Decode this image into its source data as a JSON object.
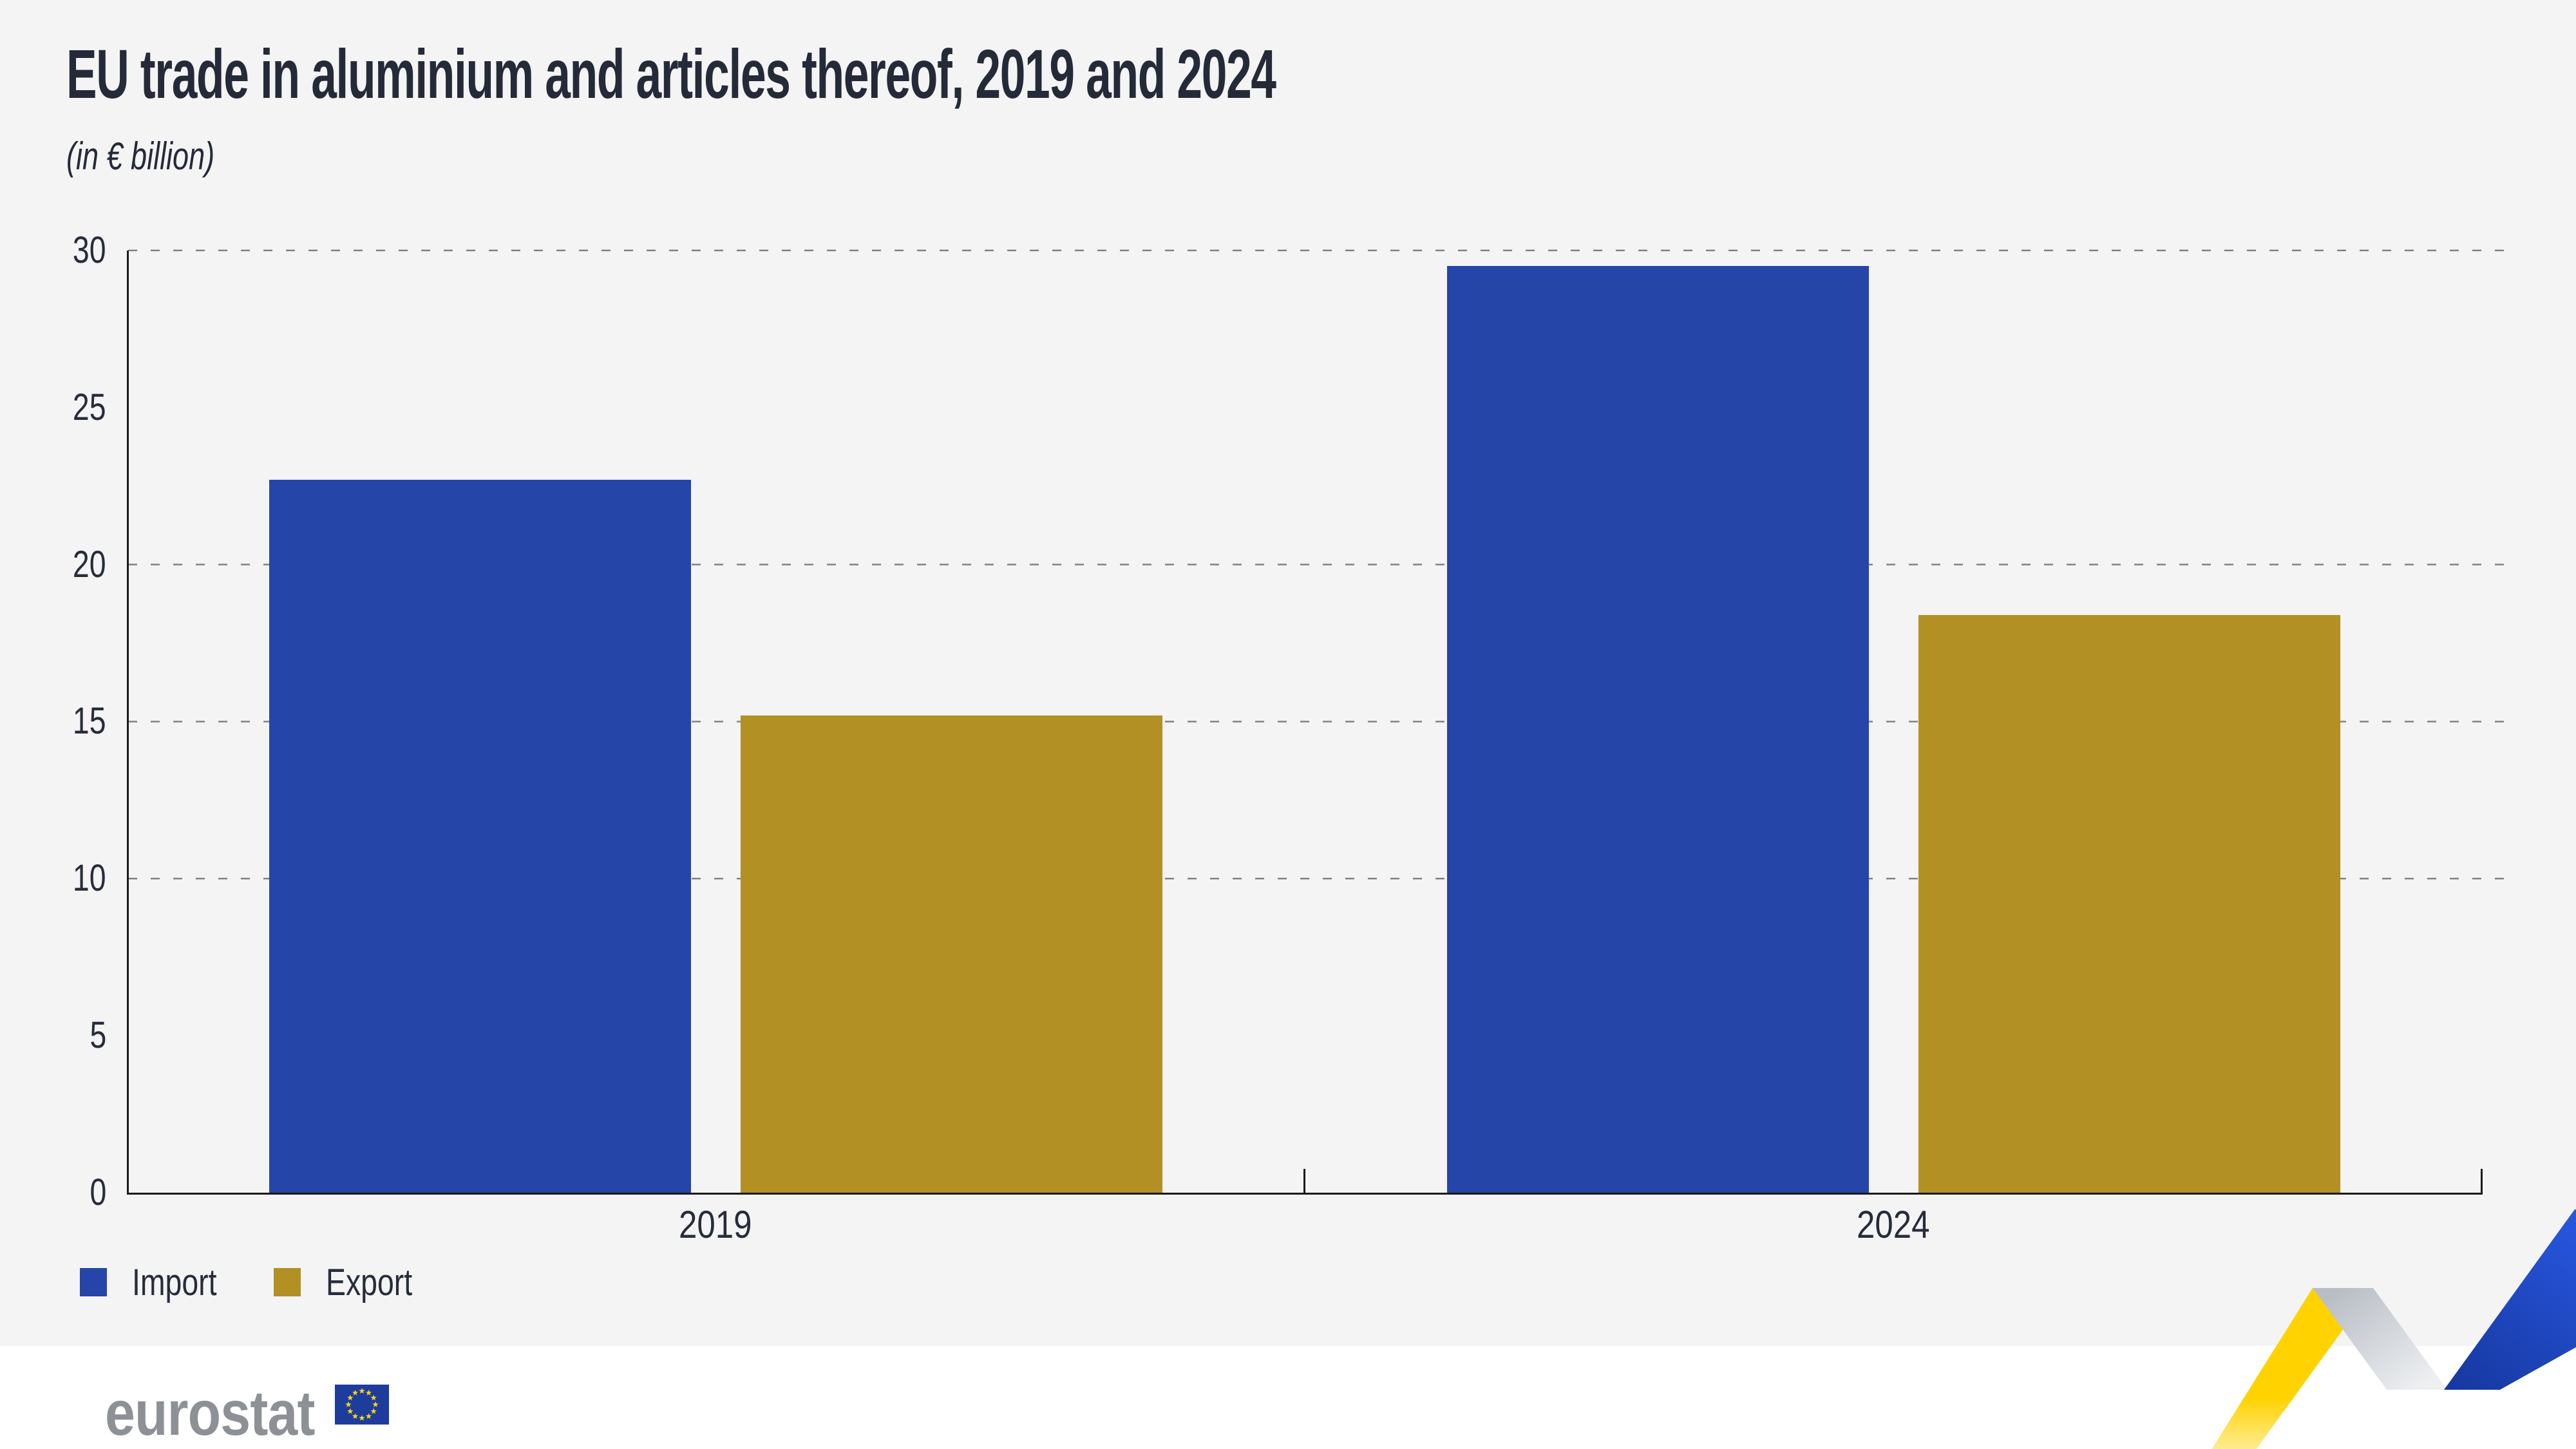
{
  "header": {
    "title": "EU trade in aluminium and articles thereof, 2019 and 2024",
    "subtitle": "(in € billion)"
  },
  "chart_data": {
    "type": "bar",
    "categories": [
      "2019",
      "2024"
    ],
    "series": [
      {
        "name": "Import",
        "color": "#2645a9",
        "values": [
          22.7,
          29.5
        ]
      },
      {
        "name": "Export",
        "color": "#b29023",
        "values": [
          15.2,
          18.4
        ]
      }
    ],
    "title": "EU trade in aluminium and articles thereof, 2019 and 2024",
    "subtitle": "(in € billion)",
    "xlabel": "",
    "ylabel": "",
    "ylim": [
      0,
      30
    ],
    "yticks": [
      0,
      5,
      10,
      15,
      20,
      25,
      30
    ],
    "gridlines_at": [
      10,
      15,
      20,
      30
    ],
    "grid_style": "dashed",
    "legend_position": "bottom-left"
  },
  "footer": {
    "logo_text": "eurostat"
  },
  "colors": {
    "background": "#f4f4f5",
    "footer_background": "#ffffff",
    "import_bar": "#2645a9",
    "export_bar": "#b29023",
    "axis": "#1a1a1a",
    "gridline": "#7f8184",
    "text": "#262c3a",
    "logo_gray": "#8d9196",
    "flag_blue": "#1d3c9c",
    "flag_star": "#ffd617",
    "ribbon_yellow": "#ffd200",
    "ribbon_blue": "#1f48d0",
    "ribbon_gray": "#c3c8cf"
  }
}
